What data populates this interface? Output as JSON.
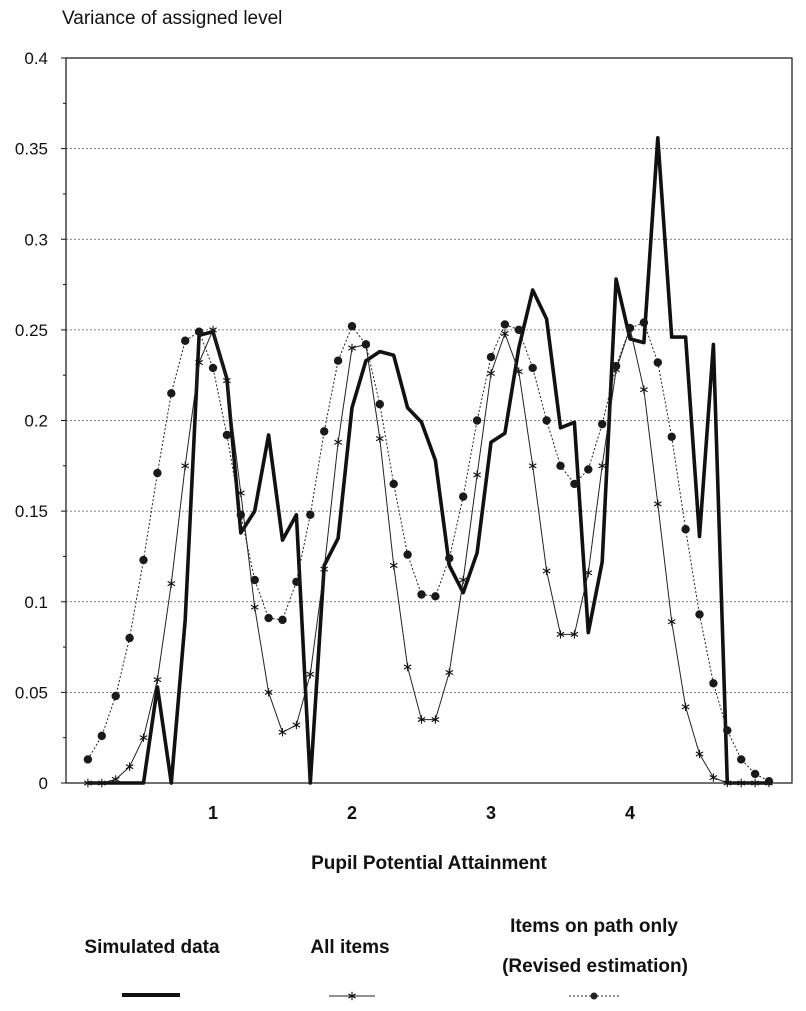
{
  "chart_data": {
    "type": "line",
    "title": "Variance of assigned level",
    "xlabel": "Pupil Potential Attainment",
    "ylabel": "Variance of assigned level",
    "xlim": [
      0,
      5
    ],
    "ylim": [
      0,
      0.4
    ],
    "xticks": [
      1,
      2,
      3,
      4
    ],
    "xtick_labels": [
      "1",
      "2",
      "3",
      "4"
    ],
    "yticks": [
      0,
      0.05,
      0.1,
      0.15,
      0.2,
      0.25,
      0.3,
      0.35,
      0.4
    ],
    "ytick_labels": [
      "0",
      "0.05",
      "0.1",
      "0.15",
      "0.2",
      "0.25",
      "0.3",
      "0.35",
      "0.4"
    ],
    "grid": "horizontal dotted",
    "legend_position": "bottom",
    "series": [
      {
        "name": "Simulated data",
        "style": "thick-line",
        "color": "#111111",
        "points": [
          [
            0.1,
            0
          ],
          [
            0.2,
            0
          ],
          [
            0.3,
            0
          ],
          [
            0.4,
            0
          ],
          [
            0.5,
            0
          ],
          [
            0.6,
            0.053
          ],
          [
            0.7,
            0
          ],
          [
            0.8,
            0.09
          ],
          [
            0.9,
            0.247
          ],
          [
            1.0,
            0.249
          ],
          [
            1.1,
            0.223
          ],
          [
            1.2,
            0.138
          ],
          [
            1.3,
            0.15
          ],
          [
            1.4,
            0.192
          ],
          [
            1.5,
            0.134
          ],
          [
            1.6,
            0.148
          ],
          [
            1.7,
            0
          ],
          [
            1.8,
            0.12
          ],
          [
            1.9,
            0.135
          ],
          [
            2.0,
            0.207
          ],
          [
            2.1,
            0.233
          ],
          [
            2.2,
            0.238
          ],
          [
            2.3,
            0.236
          ],
          [
            2.4,
            0.207
          ],
          [
            2.5,
            0.199
          ],
          [
            2.6,
            0.178
          ],
          [
            2.7,
            0.12
          ],
          [
            2.8,
            0.105
          ],
          [
            2.9,
            0.127
          ],
          [
            3.0,
            0.188
          ],
          [
            3.1,
            0.193
          ],
          [
            3.2,
            0.24
          ],
          [
            3.3,
            0.272
          ],
          [
            3.4,
            0.256
          ],
          [
            3.5,
            0.196
          ],
          [
            3.6,
            0.199
          ],
          [
            3.7,
            0.083
          ],
          [
            3.8,
            0.122
          ],
          [
            3.9,
            0.278
          ],
          [
            4.0,
            0.245
          ],
          [
            4.1,
            0.243
          ],
          [
            4.2,
            0.356
          ],
          [
            4.3,
            0.246
          ],
          [
            4.4,
            0.246
          ],
          [
            4.5,
            0.136
          ],
          [
            4.6,
            0.242
          ],
          [
            4.7,
            0
          ],
          [
            4.8,
            0
          ],
          [
            4.9,
            0
          ],
          [
            5.0,
            0
          ]
        ]
      },
      {
        "name": "All items",
        "style": "thin-line-star",
        "color": "#222222",
        "points": [
          [
            0.1,
            0
          ],
          [
            0.2,
            0
          ],
          [
            0.3,
            0.002
          ],
          [
            0.4,
            0.009
          ],
          [
            0.5,
            0.025
          ],
          [
            0.6,
            0.057
          ],
          [
            0.7,
            0.11
          ],
          [
            0.8,
            0.175
          ],
          [
            0.9,
            0.232
          ],
          [
            1.0,
            0.25
          ],
          [
            1.1,
            0.222
          ],
          [
            1.2,
            0.16
          ],
          [
            1.3,
            0.097
          ],
          [
            1.4,
            0.05
          ],
          [
            1.5,
            0.028
          ],
          [
            1.6,
            0.032
          ],
          [
            1.7,
            0.06
          ],
          [
            1.8,
            0.118
          ],
          [
            1.9,
            0.188
          ],
          [
            2.0,
            0.24
          ],
          [
            2.1,
            0.242
          ],
          [
            2.2,
            0.19
          ],
          [
            2.3,
            0.12
          ],
          [
            2.4,
            0.064
          ],
          [
            2.5,
            0.035
          ],
          [
            2.6,
            0.035
          ],
          [
            2.7,
            0.061
          ],
          [
            2.8,
            0.112
          ],
          [
            2.9,
            0.17
          ],
          [
            3.0,
            0.226
          ],
          [
            3.1,
            0.248
          ],
          [
            3.2,
            0.227
          ],
          [
            3.3,
            0.175
          ],
          [
            3.4,
            0.117
          ],
          [
            3.5,
            0.082
          ],
          [
            3.6,
            0.082
          ],
          [
            3.7,
            0.116
          ],
          [
            3.8,
            0.175
          ],
          [
            3.9,
            0.228
          ],
          [
            4.0,
            0.251
          ],
          [
            4.1,
            0.217
          ],
          [
            4.2,
            0.154
          ],
          [
            4.3,
            0.089
          ],
          [
            4.4,
            0.042
          ],
          [
            4.5,
            0.016
          ],
          [
            4.6,
            0.003
          ],
          [
            4.7,
            0
          ],
          [
            4.8,
            0
          ],
          [
            4.9,
            0
          ],
          [
            5.0,
            0
          ]
        ]
      },
      {
        "name": "Items on path only (Revised estimation)",
        "style": "dotted-line-dot",
        "color": "#222222",
        "points": [
          [
            0.1,
            0.013
          ],
          [
            0.2,
            0.026
          ],
          [
            0.3,
            0.048
          ],
          [
            0.4,
            0.08
          ],
          [
            0.5,
            0.123
          ],
          [
            0.6,
            0.171
          ],
          [
            0.7,
            0.215
          ],
          [
            0.8,
            0.244
          ],
          [
            0.9,
            0.249
          ],
          [
            1.0,
            0.229
          ],
          [
            1.1,
            0.192
          ],
          [
            1.2,
            0.148
          ],
          [
            1.3,
            0.112
          ],
          [
            1.4,
            0.091
          ],
          [
            1.5,
            0.09
          ],
          [
            1.6,
            0.111
          ],
          [
            1.7,
            0.148
          ],
          [
            1.8,
            0.194
          ],
          [
            1.9,
            0.233
          ],
          [
            2.0,
            0.252
          ],
          [
            2.1,
            0.242
          ],
          [
            2.2,
            0.209
          ],
          [
            2.3,
            0.165
          ],
          [
            2.4,
            0.126
          ],
          [
            2.5,
            0.104
          ],
          [
            2.6,
            0.103
          ],
          [
            2.7,
            0.124
          ],
          [
            2.8,
            0.158
          ],
          [
            2.9,
            0.2
          ],
          [
            3.0,
            0.235
          ],
          [
            3.1,
            0.253
          ],
          [
            3.2,
            0.25
          ],
          [
            3.3,
            0.229
          ],
          [
            3.4,
            0.2
          ],
          [
            3.5,
            0.175
          ],
          [
            3.6,
            0.165
          ],
          [
            3.7,
            0.173
          ],
          [
            3.8,
            0.198
          ],
          [
            3.9,
            0.23
          ],
          [
            4.0,
            0.251
          ],
          [
            4.1,
            0.254
          ],
          [
            4.2,
            0.232
          ],
          [
            4.3,
            0.191
          ],
          [
            4.4,
            0.14
          ],
          [
            4.5,
            0.093
          ],
          [
            4.6,
            0.055
          ],
          [
            4.7,
            0.029
          ],
          [
            4.8,
            0.013
          ],
          [
            4.9,
            0.005
          ],
          [
            5.0,
            0.001
          ]
        ]
      }
    ],
    "legend": [
      {
        "label": "Simulated data",
        "label_line2": ""
      },
      {
        "label": "All items",
        "label_line2": ""
      },
      {
        "label": "Items on path only",
        "label_line2": "(Revised estimation)"
      }
    ]
  }
}
